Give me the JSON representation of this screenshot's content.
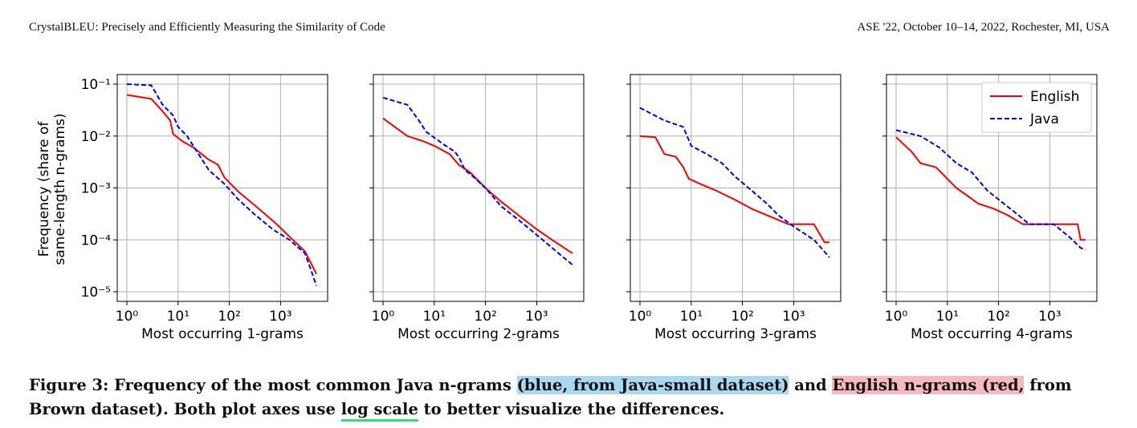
{
  "header": {
    "left": "CrystalBLEU: Precisely and Efficiently Measuring the Similarity of Code",
    "right": "ASE '22, October 10–14, 2022, Rochester, MI, USA"
  },
  "caption": {
    "p1": "Figure 3: Frequency of the most common Java n-grams ",
    "hl_blue": "(blue, from Java-small dataset)",
    "p2": " and ",
    "hl_red": "English n-grams (red,",
    "p3": " from Brown dataset). Both plot axes use ",
    "ul_green": "log scale",
    "p4": " to better visualize the differences."
  },
  "colors": {
    "english": "#ff0000",
    "java": "#0000ff",
    "highlight_blue": "#a9d8f0",
    "highlight_red": "#f6b9c0",
    "underline": "#2ee07a"
  },
  "chart_data": [
    {
      "type": "line",
      "xscale": "log",
      "yscale": "log",
      "xlim": [
        1,
        5000
      ],
      "ylim": [
        1e-05,
        0.1
      ],
      "xticks": [
        "10⁰",
        "10¹",
        "10²",
        "10³"
      ],
      "yticks": [
        "10⁻¹",
        "10⁻²",
        "10⁻³",
        "10⁻⁴",
        "10⁻⁵"
      ],
      "ylabel_line1": "Frequency (share of",
      "ylabel_line2": "same-length n-grams)",
      "xlabel": "Most occurring 1-grams",
      "grid": true,
      "series": [
        {
          "name": "English",
          "style": "solid",
          "points": [
            [
              1,
              0.062
            ],
            [
              3,
              0.052
            ],
            [
              5,
              0.03
            ],
            [
              7,
              0.02
            ],
            [
              8,
              0.011
            ],
            [
              12,
              0.008
            ],
            [
              20,
              0.006
            ],
            [
              40,
              0.0035
            ],
            [
              60,
              0.0028
            ],
            [
              80,
              0.0016
            ],
            [
              150,
              0.00085
            ],
            [
              300,
              0.00048
            ],
            [
              800,
              0.00021
            ],
            [
              1500,
              0.000115
            ],
            [
              3000,
              6e-05
            ],
            [
              5000,
              2.2e-05
            ]
          ]
        },
        {
          "name": "Java",
          "style": "dashed",
          "points": [
            [
              1,
              0.1
            ],
            [
              3,
              0.095
            ],
            [
              5,
              0.04
            ],
            [
              8,
              0.025
            ],
            [
              10,
              0.015
            ],
            [
              15,
              0.01
            ],
            [
              25,
              0.0045
            ],
            [
              40,
              0.0022
            ],
            [
              80,
              0.0012
            ],
            [
              150,
              0.0006
            ],
            [
              300,
              0.00032
            ],
            [
              700,
              0.00016
            ],
            [
              1500,
              0.0001
            ],
            [
              3000,
              5.5e-05
            ],
            [
              4000,
              2.5e-05
            ],
            [
              5000,
              1.3e-05
            ]
          ]
        }
      ]
    },
    {
      "type": "line",
      "xscale": "log",
      "yscale": "log",
      "xlim": [
        1,
        5000
      ],
      "ylim": [
        1e-05,
        0.1
      ],
      "xticks": [
        "10⁰",
        "10¹",
        "10²",
        "10³"
      ],
      "xlabel": "Most occurring 2-grams",
      "grid": true,
      "series": [
        {
          "name": "English",
          "style": "solid",
          "points": [
            [
              1,
              0.022
            ],
            [
              3,
              0.01
            ],
            [
              6,
              0.008
            ],
            [
              10,
              0.0065
            ],
            [
              20,
              0.0045
            ],
            [
              30,
              0.0028
            ],
            [
              50,
              0.002
            ],
            [
              100,
              0.001
            ],
            [
              200,
              0.00055
            ],
            [
              500,
              0.00027
            ],
            [
              1000,
              0.00016
            ],
            [
              2000,
              0.0001
            ],
            [
              5000,
              5.5e-05
            ]
          ]
        },
        {
          "name": "Java",
          "style": "dashed",
          "points": [
            [
              1,
              0.055
            ],
            [
              3,
              0.04
            ],
            [
              5,
              0.02
            ],
            [
              7,
              0.012
            ],
            [
              15,
              0.007
            ],
            [
              25,
              0.005
            ],
            [
              30,
              0.004
            ],
            [
              40,
              0.0022
            ],
            [
              60,
              0.0016
            ],
            [
              100,
              0.001
            ],
            [
              200,
              0.00045
            ],
            [
              500,
              0.00022
            ],
            [
              1000,
              0.000125
            ],
            [
              3000,
              5e-05
            ],
            [
              5000,
              3.3e-05
            ]
          ]
        }
      ]
    },
    {
      "type": "line",
      "xscale": "log",
      "yscale": "log",
      "xlim": [
        1,
        5000
      ],
      "ylim": [
        1e-05,
        0.1
      ],
      "xticks": [
        "10⁰",
        "10¹",
        "10²",
        "10³"
      ],
      "xlabel": "Most occurring 3-grams",
      "grid": true,
      "series": [
        {
          "name": "English",
          "style": "solid",
          "points": [
            [
              1,
              0.01
            ],
            [
              2,
              0.0095
            ],
            [
              3,
              0.0045
            ],
            [
              5,
              0.004
            ],
            [
              7,
              0.0025
            ],
            [
              9,
              0.0015
            ],
            [
              15,
              0.0012
            ],
            [
              30,
              0.0009
            ],
            [
              70,
              0.0006
            ],
            [
              150,
              0.0004
            ],
            [
              300,
              0.0003
            ],
            [
              800,
              0.0002
            ],
            [
              2500,
              0.0002
            ],
            [
              4000,
              9e-05
            ],
            [
              5000,
              9e-05
            ]
          ]
        },
        {
          "name": "Java",
          "style": "dashed",
          "points": [
            [
              1,
              0.035
            ],
            [
              3,
              0.02
            ],
            [
              7,
              0.015
            ],
            [
              10,
              0.0065
            ],
            [
              20,
              0.0045
            ],
            [
              40,
              0.003
            ],
            [
              70,
              0.0017
            ],
            [
              150,
              0.0009
            ],
            [
              300,
              0.0005
            ],
            [
              500,
              0.0003
            ],
            [
              1000,
              0.00018
            ],
            [
              2500,
              0.0001
            ],
            [
              5000,
              4.6e-05
            ]
          ]
        }
      ]
    },
    {
      "type": "line",
      "xscale": "log",
      "yscale": "log",
      "xlim": [
        1,
        5000
      ],
      "ylim": [
        1e-05,
        0.1
      ],
      "xticks": [
        "10⁰",
        "10¹",
        "10²",
        "10³"
      ],
      "xlabel": "Most occurring 4-grams",
      "grid": true,
      "legend": "top-right",
      "series": [
        {
          "name": "English",
          "style": "solid",
          "points": [
            [
              1,
              0.0095
            ],
            [
              2,
              0.005
            ],
            [
              3,
              0.003
            ],
            [
              6,
              0.0025
            ],
            [
              10,
              0.0015
            ],
            [
              15,
              0.001
            ],
            [
              25,
              0.0007
            ],
            [
              40,
              0.0005
            ],
            [
              80,
              0.0004
            ],
            [
              150,
              0.0003
            ],
            [
              300,
              0.0002
            ],
            [
              3500,
              0.0002
            ],
            [
              4000,
              0.0001
            ],
            [
              5000,
              0.0001
            ]
          ]
        },
        {
          "name": "Java",
          "style": "dashed",
          "points": [
            [
              1,
              0.013
            ],
            [
              3,
              0.01
            ],
            [
              7,
              0.006
            ],
            [
              15,
              0.003
            ],
            [
              30,
              0.002
            ],
            [
              60,
              0.0009
            ],
            [
              100,
              0.0006
            ],
            [
              200,
              0.00035
            ],
            [
              400,
              0.0002
            ],
            [
              1200,
              0.0002
            ],
            [
              2500,
              0.00011
            ],
            [
              4000,
              7e-05
            ],
            [
              5000,
              6.5e-05
            ]
          ]
        }
      ]
    }
  ]
}
